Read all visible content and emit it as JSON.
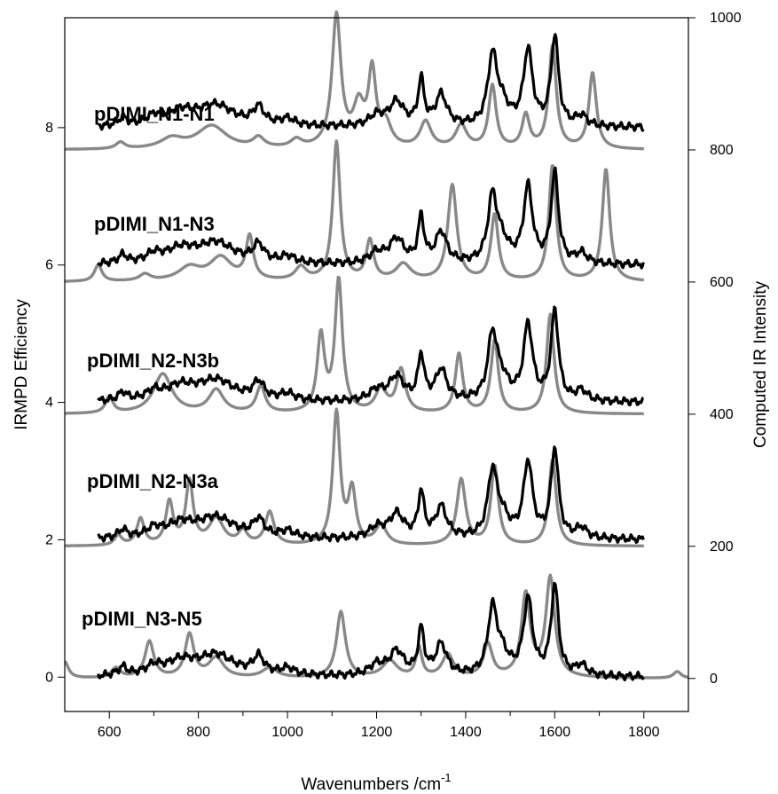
{
  "chart_data": {
    "type": "line",
    "title": "",
    "xlabel": "Wavenumbers /cm",
    "xlabel_superscript": "-1",
    "ylabel_left": "IRMPD Efficiency",
    "ylabel_right": "Computed IR Intensity",
    "xlim": [
      500,
      1900
    ],
    "ylim_left": [
      -0.5,
      9.6
    ],
    "ylim_right": [
      -50,
      1000
    ],
    "x_ticks": [
      "600",
      "800",
      "1000",
      "1200",
      "1400",
      "1600",
      "1800"
    ],
    "y_left_ticks": [
      "0",
      "2",
      "4",
      "6",
      "8"
    ],
    "y_right_ticks": [
      "0",
      "200",
      "400",
      "600",
      "800",
      "1000"
    ],
    "grid": false,
    "legend": "none",
    "colors": {
      "experimental": "#000000",
      "computed": "#888888"
    },
    "trace_labels": [
      "pDIMI_N1-N1",
      "pDIMI_N1-N3",
      "pDIMI_N2-N3b",
      "pDIMI_N2-N3a",
      "pDIMI_N3-N5"
    ],
    "series": [
      {
        "baseline": 8,
        "experimental": {
          "x_range": [
            575,
            1800
          ],
          "peaks": [
            [
              630,
              0.12,
              12
            ],
            [
              700,
              0.12,
              20
            ],
            [
              760,
              0.2,
              40
            ],
            [
              840,
              0.3,
              50
            ],
            [
              935,
              0.25,
              15
            ],
            [
              1000,
              0.1,
              20
            ],
            [
              1200,
              0.15,
              20
            ],
            [
              1245,
              0.35,
              20
            ],
            [
              1300,
              0.65,
              8
            ],
            [
              1345,
              0.45,
              15
            ],
            [
              1460,
              0.95,
              12
            ],
            [
              1480,
              0.3,
              20
            ],
            [
              1540,
              1.1,
              12
            ],
            [
              1600,
              1.3,
              10
            ],
            [
              1660,
              0.15,
              15
            ]
          ]
        },
        "computed": {
          "x_range": [
            500,
            1800
          ],
          "peaks": [
            [
              625,
              10,
              12
            ],
            [
              740,
              15,
              30
            ],
            [
              830,
              35,
              40
            ],
            [
              935,
              15,
              15
            ],
            [
              1020,
              12,
              15
            ],
            [
              1110,
              200,
              12
            ],
            [
              1160,
              60,
              15
            ],
            [
              1190,
              110,
              10
            ],
            [
              1220,
              35,
              15
            ],
            [
              1310,
              40,
              15
            ],
            [
              1390,
              35,
              15
            ],
            [
              1460,
              95,
              10
            ],
            [
              1535,
              50,
              10
            ],
            [
              1595,
              155,
              10
            ],
            [
              1685,
              115,
              10
            ]
          ]
        }
      },
      {
        "baseline": 6,
        "experimental": {
          "x_range": [
            575,
            1800
          ],
          "peaks": [
            [
              630,
              0.12,
              12
            ],
            [
              700,
              0.12,
              20
            ],
            [
              760,
              0.2,
              40
            ],
            [
              840,
              0.3,
              50
            ],
            [
              935,
              0.25,
              15
            ],
            [
              1000,
              0.1,
              20
            ],
            [
              1200,
              0.15,
              20
            ],
            [
              1245,
              0.35,
              20
            ],
            [
              1300,
              0.65,
              8
            ],
            [
              1345,
              0.45,
              15
            ],
            [
              1460,
              0.9,
              12
            ],
            [
              1480,
              0.3,
              20
            ],
            [
              1540,
              1.1,
              12
            ],
            [
              1600,
              1.3,
              10
            ],
            [
              1660,
              0.15,
              15
            ]
          ]
        },
        "computed": {
          "x_range": [
            500,
            1800
          ],
          "peaks": [
            [
              575,
              25,
              10
            ],
            [
              680,
              10,
              15
            ],
            [
              780,
              20,
              30
            ],
            [
              850,
              35,
              30
            ],
            [
              915,
              65,
              10
            ],
            [
              1030,
              20,
              15
            ],
            [
              1110,
              210,
              10
            ],
            [
              1185,
              60,
              10
            ],
            [
              1260,
              25,
              20
            ],
            [
              1370,
              145,
              12
            ],
            [
              1465,
              100,
              10
            ],
            [
              1595,
              175,
              10
            ],
            [
              1715,
              170,
              10
            ]
          ]
        }
      },
      {
        "baseline": 4,
        "experimental": {
          "x_range": [
            575,
            1800
          ],
          "peaks": [
            [
              630,
              0.12,
              12
            ],
            [
              700,
              0.12,
              20
            ],
            [
              760,
              0.2,
              40
            ],
            [
              840,
              0.3,
              50
            ],
            [
              935,
              0.25,
              15
            ],
            [
              1000,
              0.1,
              20
            ],
            [
              1200,
              0.15,
              20
            ],
            [
              1245,
              0.35,
              20
            ],
            [
              1300,
              0.65,
              8
            ],
            [
              1345,
              0.45,
              15
            ],
            [
              1460,
              0.9,
              12
            ],
            [
              1480,
              0.3,
              20
            ],
            [
              1540,
              1.1,
              12
            ],
            [
              1600,
              1.3,
              10
            ],
            [
              1660,
              0.15,
              15
            ]
          ]
        },
        "computed": {
          "x_range": [
            500,
            1800
          ],
          "peaks": [
            [
              600,
              25,
              10
            ],
            [
              720,
              60,
              25
            ],
            [
              840,
              35,
              20
            ],
            [
              940,
              40,
              12
            ],
            [
              1075,
              115,
              10
            ],
            [
              1115,
              200,
              10
            ],
            [
              1210,
              35,
              15
            ],
            [
              1255,
              65,
              12
            ],
            [
              1385,
              90,
              10
            ],
            [
              1465,
              110,
              10
            ],
            [
              1590,
              150,
              10
            ]
          ]
        }
      },
      {
        "baseline": 2,
        "experimental": {
          "x_range": [
            575,
            1800
          ],
          "peaks": [
            [
              630,
              0.12,
              12
            ],
            [
              700,
              0.12,
              20
            ],
            [
              760,
              0.2,
              40
            ],
            [
              840,
              0.3,
              50
            ],
            [
              935,
              0.25,
              15
            ],
            [
              1000,
              0.1,
              20
            ],
            [
              1200,
              0.15,
              20
            ],
            [
              1245,
              0.35,
              20
            ],
            [
              1300,
              0.65,
              8
            ],
            [
              1345,
              0.45,
              15
            ],
            [
              1460,
              0.9,
              12
            ],
            [
              1480,
              0.3,
              20
            ],
            [
              1540,
              1.1,
              12
            ],
            [
              1600,
              1.3,
              10
            ],
            [
              1660,
              0.15,
              15
            ]
          ]
        },
        "computed": {
          "x_range": [
            500,
            1800
          ],
          "peaks": [
            [
              620,
              15,
              10
            ],
            [
              670,
              40,
              10
            ],
            [
              735,
              65,
              10
            ],
            [
              780,
              95,
              10
            ],
            [
              840,
              40,
              20
            ],
            [
              900,
              20,
              12
            ],
            [
              960,
              50,
              12
            ],
            [
              1110,
              200,
              10
            ],
            [
              1145,
              80,
              10
            ],
            [
              1210,
              30,
              15
            ],
            [
              1390,
              100,
              12
            ],
            [
              1465,
              120,
              10
            ],
            [
              1595,
              130,
              10
            ]
          ]
        }
      },
      {
        "baseline": 0,
        "experimental": {
          "x_range": [
            575,
            1800
          ],
          "peaks": [
            [
              630,
              0.12,
              12
            ],
            [
              700,
              0.12,
              20
            ],
            [
              760,
              0.2,
              40
            ],
            [
              840,
              0.3,
              50
            ],
            [
              935,
              0.25,
              15
            ],
            [
              1000,
              0.1,
              20
            ],
            [
              1200,
              0.15,
              20
            ],
            [
              1245,
              0.35,
              20
            ],
            [
              1300,
              0.65,
              8
            ],
            [
              1345,
              0.45,
              15
            ],
            [
              1460,
              0.9,
              12
            ],
            [
              1480,
              0.3,
              20
            ],
            [
              1540,
              1.1,
              12
            ],
            [
              1600,
              1.3,
              10
            ],
            [
              1660,
              0.15,
              15
            ]
          ]
        },
        "computed": {
          "x_range": [
            500,
            1900
          ],
          "peaks": [
            [
              500,
              25,
              10
            ],
            [
              615,
              15,
              12
            ],
            [
              690,
              55,
              12
            ],
            [
              780,
              65,
              12
            ],
            [
              840,
              30,
              20
            ],
            [
              960,
              15,
              20
            ],
            [
              1120,
              100,
              12
            ],
            [
              1230,
              25,
              20
            ],
            [
              1295,
              45,
              8
            ],
            [
              1360,
              35,
              15
            ],
            [
              1450,
              50,
              12
            ],
            [
              1535,
              125,
              12
            ],
            [
              1590,
              150,
              12
            ],
            [
              1875,
              10,
              10
            ]
          ]
        }
      }
    ]
  }
}
